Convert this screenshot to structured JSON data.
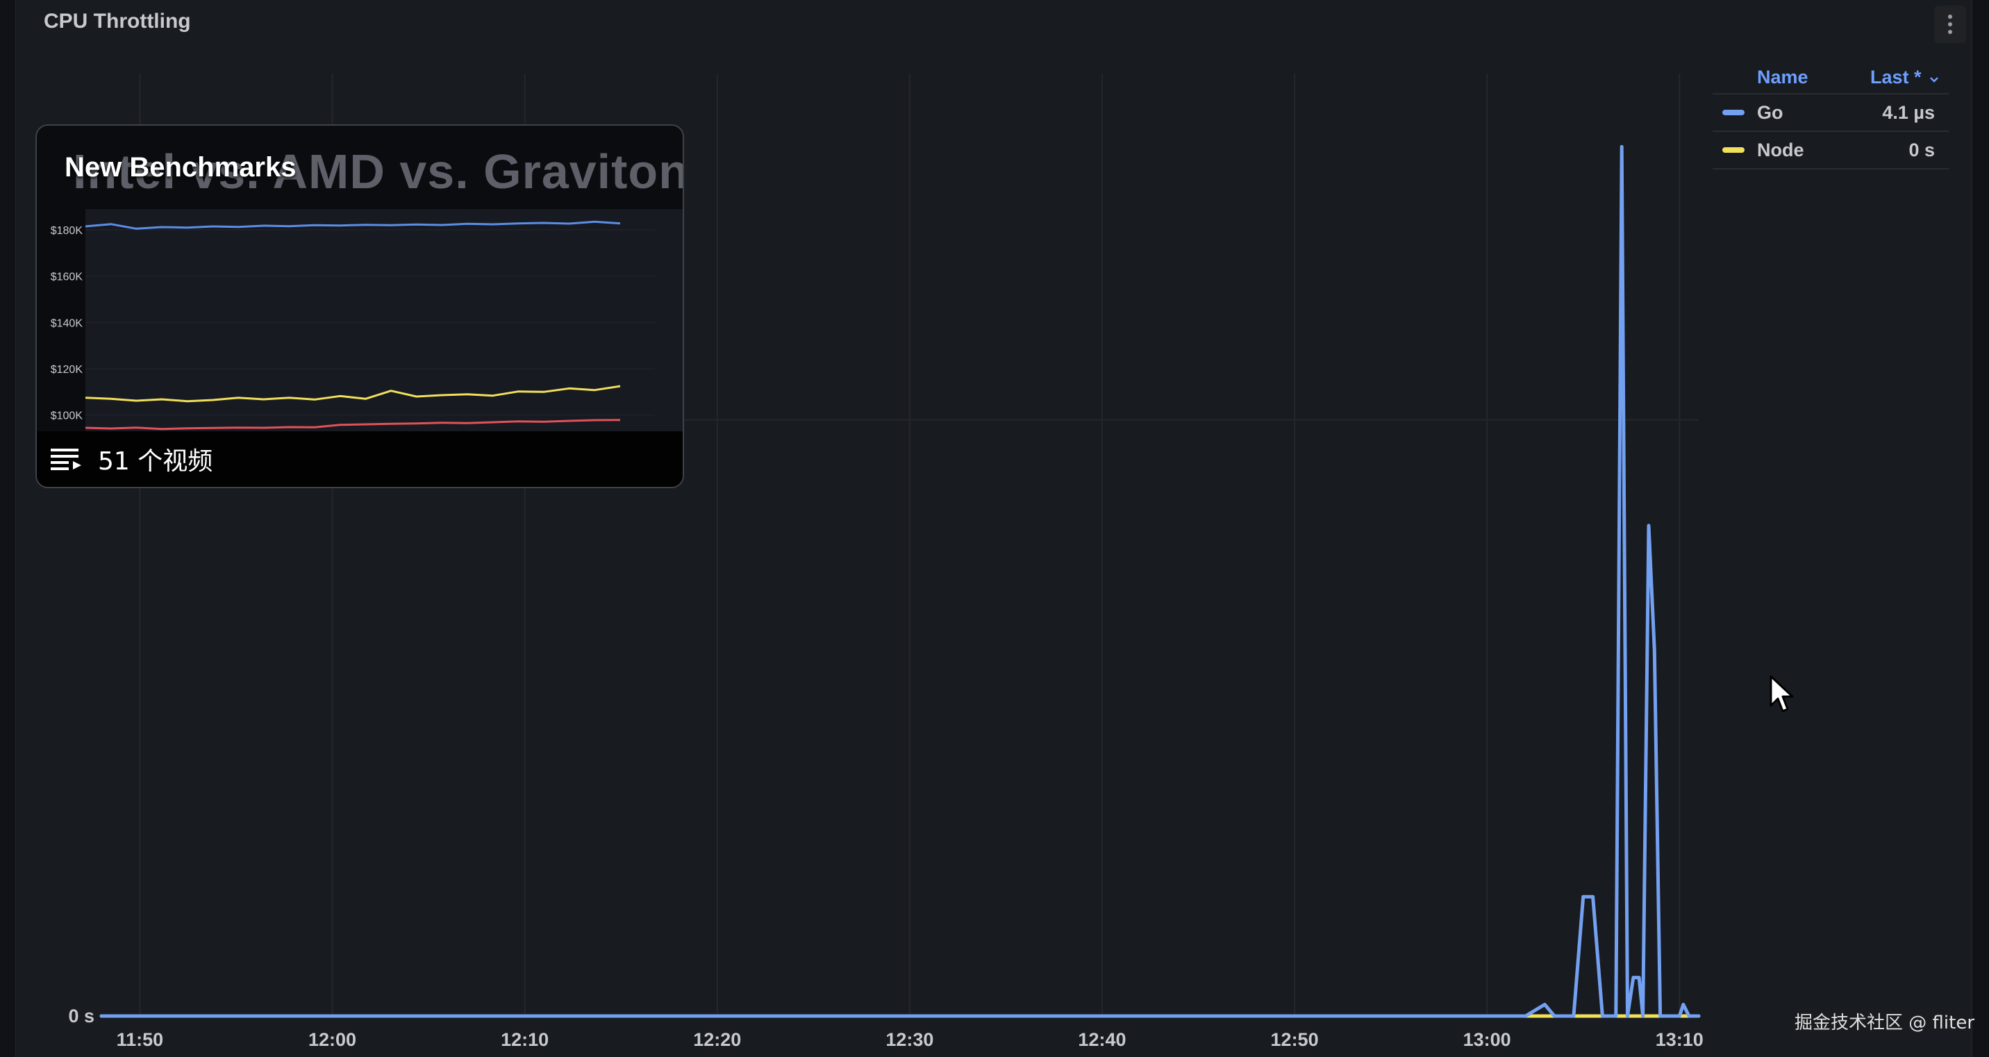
{
  "panel": {
    "title": "CPU Throttling",
    "menu_icon": "kebab-menu-icon"
  },
  "legend": {
    "name_header": "Name",
    "last_header": "Last *",
    "sort_icon": "chevron-down-icon",
    "items": [
      {
        "name": "Go",
        "value": "4.1 µs",
        "color": "#73a0f0"
      },
      {
        "name": "Node",
        "value": "0 s",
        "color": "#f2e05a"
      }
    ]
  },
  "chart_data": {
    "type": "line",
    "title": "CPU Throttling",
    "x_tick_labels": [
      "11:50",
      "12:00",
      "12:10",
      "12:20",
      "12:30",
      "12:40",
      "12:50",
      "13:00",
      "13:10"
    ],
    "y_tick_labels": [
      "0 s"
    ],
    "x_range": [
      "11:48",
      "13:11"
    ],
    "y_range_us": [
      0,
      4.9
    ],
    "grid": true,
    "legend_placement": "right",
    "series": [
      {
        "name": "Go",
        "color": "#73a0f0",
        "points": [
          [
            "11:48",
            0
          ],
          [
            "13:02",
            0
          ],
          [
            "13:03",
            0.06
          ],
          [
            "13:03.5",
            0
          ],
          [
            "13:04.5",
            0
          ],
          [
            "13:05",
            0.62
          ],
          [
            "13:05.5",
            0.62
          ],
          [
            "13:06",
            0
          ],
          [
            "13:06.7",
            0
          ],
          [
            "13:07",
            4.52
          ],
          [
            "13:07.3",
            0
          ],
          [
            "13:07.6",
            0.2
          ],
          [
            "13:07.9",
            0.2
          ],
          [
            "13:08.1",
            0
          ],
          [
            "13:08.4",
            2.55
          ],
          [
            "13:08.7",
            1.9
          ],
          [
            "13:09",
            0
          ],
          [
            "13:10",
            0
          ],
          [
            "13:10.2",
            0.06
          ],
          [
            "13:10.5",
            0
          ],
          [
            "13:11",
            0
          ]
        ]
      },
      {
        "name": "Node",
        "color": "#f2e05a",
        "points": [
          [
            "11:48",
            0
          ],
          [
            "13:11",
            0
          ]
        ]
      }
    ]
  },
  "video": {
    "title": "New Benchmarks",
    "thumb_title": "Intel vs. AMD vs. Graviton",
    "count_label": "51 个视频",
    "playlist_icon": "playlist-icon",
    "chart": {
      "type": "line",
      "y_tick_labels": [
        "$180K",
        "$160K",
        "$140K",
        "$120K",
        "$100K"
      ],
      "y_range": [
        96000,
        186000
      ],
      "series": [
        {
          "color": "#5b8ee6",
          "values": [
            181500,
            182500,
            180500,
            181200,
            181000,
            181500,
            181300,
            181800,
            181600,
            182000,
            181900,
            182200,
            182000,
            182300,
            182100,
            182600,
            182400,
            182800,
            183000,
            182700,
            183500,
            182800
          ]
        },
        {
          "color": "#f2e05a",
          "values": [
            107500,
            107000,
            106200,
            106800,
            106000,
            106500,
            107500,
            106800,
            107500,
            106700,
            108200,
            107000,
            110500,
            108000,
            108600,
            109000,
            108400,
            110200,
            110000,
            111500,
            110800,
            112500
          ]
        },
        {
          "color": "#e0525a",
          "values": [
            94500,
            94200,
            94600,
            94000,
            94300,
            94400,
            94600,
            94500,
            94800,
            94700,
            95800,
            96000,
            96200,
            96400,
            96700,
            96500,
            96900,
            97300,
            97100,
            97500,
            97800,
            97900
          ]
        }
      ]
    }
  },
  "watermark": "掘金技术社区 @ fliter",
  "cursor_icon": "mouse-pointer-icon"
}
